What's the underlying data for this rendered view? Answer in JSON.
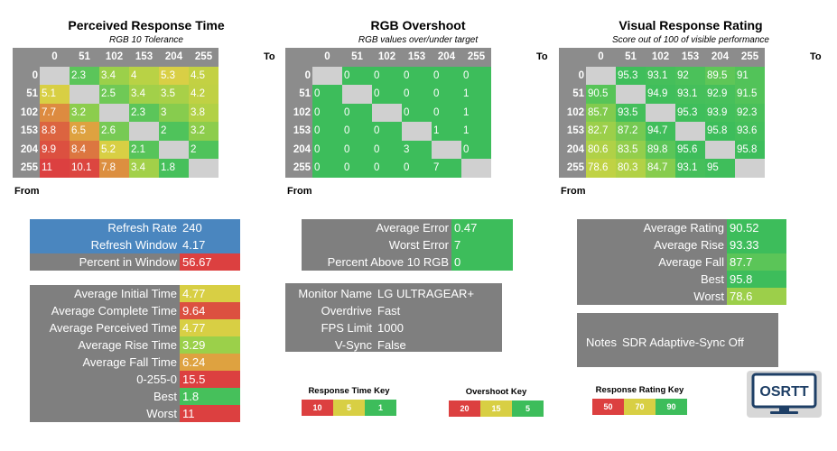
{
  "grids": [
    {
      "title": "Perceived Response Time",
      "subtitle": "RGB 10 Tolerance",
      "col_headers": [
        "0",
        "51",
        "102",
        "153",
        "204",
        "255"
      ],
      "row_headers": [
        "0",
        "51",
        "102",
        "153",
        "204",
        "255"
      ],
      "to_label": "To",
      "from_label": "From",
      "cells": [
        [
          "",
          "2.3",
          "3.4",
          "4",
          "5.3",
          "4.5"
        ],
        [
          "5.1",
          "",
          "2.5",
          "3.4",
          "3.5",
          "4.2"
        ],
        [
          "7.7",
          "3.2",
          "",
          "2.3",
          "3",
          "3.8"
        ],
        [
          "8.8",
          "6.5",
          "2.6",
          "",
          "2",
          "3.2"
        ],
        [
          "9.9",
          "8.4",
          "5.2",
          "2.1",
          "",
          "2"
        ],
        [
          "11",
          "10.1",
          "7.8",
          "3.4",
          "1.8",
          ""
        ]
      ],
      "colors": [
        [
          "#d0d0d0",
          "#5bc55a",
          "#9bd04a",
          "#b9d245",
          "#d9cf45",
          "#c3d143"
        ],
        [
          "#d8cf44",
          "#d0d0d0",
          "#6fc956",
          "#a2d049",
          "#a8d048",
          "#c0d144"
        ],
        [
          "#dd8b40",
          "#8ccd4d",
          "#d0d0d0",
          "#5bc55a",
          "#87cc4e",
          "#b2d146"
        ],
        [
          "#dc6440",
          "#dea240",
          "#77ca54",
          "#d0d0d0",
          "#4fc35b",
          "#8dcd4c"
        ],
        [
          "#dc5040",
          "#dc7640",
          "#d8cf44",
          "#57c45a",
          "#d0d0d0",
          "#4fc35b"
        ],
        [
          "#dc4040",
          "#dc4640",
          "#dc8f40",
          "#a2d049",
          "#46c05b",
          "#d0d0d0"
        ]
      ]
    },
    {
      "title": "RGB Overshoot",
      "subtitle": "RGB values over/under target",
      "col_headers": [
        "0",
        "51",
        "102",
        "153",
        "204",
        "255"
      ],
      "row_headers": [
        "0",
        "51",
        "102",
        "153",
        "204",
        "255"
      ],
      "to_label": "To",
      "from_label": "From",
      "cells": [
        [
          "",
          "0",
          "0",
          "0",
          "0",
          "0"
        ],
        [
          "0",
          "",
          "0",
          "0",
          "0",
          "1"
        ],
        [
          "0",
          "0",
          "",
          "0",
          "0",
          "1"
        ],
        [
          "0",
          "0",
          "0",
          "",
          "1",
          "1"
        ],
        [
          "0",
          "0",
          "0",
          "3",
          "",
          "0"
        ],
        [
          "0",
          "0",
          "0",
          "0",
          "7",
          ""
        ]
      ],
      "colors": [
        [
          "#d0d0d0",
          "#3dbd5b",
          "#3dbd5b",
          "#3dbd5b",
          "#3dbd5b",
          "#3dbd5b"
        ],
        [
          "#3dbd5b",
          "#d0d0d0",
          "#3dbd5b",
          "#3dbd5b",
          "#3dbd5b",
          "#3dbd5b"
        ],
        [
          "#3dbd5b",
          "#3dbd5b",
          "#d0d0d0",
          "#3dbd5b",
          "#3dbd5b",
          "#3dbd5b"
        ],
        [
          "#3dbd5b",
          "#3dbd5b",
          "#3dbd5b",
          "#d0d0d0",
          "#3dbd5b",
          "#3dbd5b"
        ],
        [
          "#3dbd5b",
          "#3dbd5b",
          "#3dbd5b",
          "#3dbd5b",
          "#d0d0d0",
          "#3dbd5b"
        ],
        [
          "#3dbd5b",
          "#3dbd5b",
          "#3dbd5b",
          "#3dbd5b",
          "#3dbd5b",
          "#d0d0d0"
        ]
      ]
    },
    {
      "title": "Visual Response Rating",
      "subtitle": "Score out of 100 of visible performance",
      "col_headers": [
        "0",
        "51",
        "102",
        "153",
        "204",
        "255"
      ],
      "row_headers": [
        "0",
        "51",
        "102",
        "153",
        "204",
        "255"
      ],
      "to_label": "To",
      "from_label": "From",
      "cells": [
        [
          "",
          "95.3",
          "93.1",
          "92",
          "89.5",
          "91"
        ],
        [
          "90.5",
          "",
          "94.9",
          "93.1",
          "92.9",
          "91.5"
        ],
        [
          "85.7",
          "93.5",
          "",
          "95.3",
          "93.9",
          "92.3"
        ],
        [
          "82.7",
          "87.2",
          "94.7",
          "",
          "95.8",
          "93.6"
        ],
        [
          "80.6",
          "83.5",
          "89.8",
          "95.6",
          "",
          "95.8"
        ],
        [
          "78.6",
          "80.3",
          "84.7",
          "93.1",
          "95",
          ""
        ]
      ],
      "colors": [
        [
          "#d0d0d0",
          "#3fbe5b",
          "#45bf5b",
          "#4bc15a",
          "#5fc657",
          "#52c359"
        ],
        [
          "#57c458",
          "#d0d0d0",
          "#40be5b",
          "#45bf5b",
          "#47c05b",
          "#52c359"
        ],
        [
          "#82cb4e",
          "#44bf5b",
          "#d0d0d0",
          "#3fbe5b",
          "#43bf5b",
          "#49c05a"
        ],
        [
          "#9ccf4a",
          "#75c952",
          "#41be5b",
          "#d0d0d0",
          "#3dbd5b",
          "#44bf5b"
        ],
        [
          "#b0d147",
          "#93ce4c",
          "#5bc558",
          "#3ebd5b",
          "#d0d0d0",
          "#3dbd5b"
        ],
        [
          "#c0d244",
          "#b2d146",
          "#87cc4e",
          "#45bf5b",
          "#3fbe5b",
          "#d0d0d0"
        ]
      ]
    }
  ],
  "stats_timing": {
    "rows": [
      {
        "label": "Refresh Rate",
        "value": "240",
        "bg": "#4a86bf",
        "vbg": "#4a86bf"
      },
      {
        "label": "Refresh Window",
        "value": "4.17",
        "bg": "#4a86bf",
        "vbg": "#4a86bf"
      },
      {
        "label": "Percent in Window",
        "value": "56.67",
        "bg": "#7f7f7f",
        "vbg": "#dc4040"
      }
    ]
  },
  "stats_averages": {
    "rows": [
      {
        "label": "Average Initial Time",
        "value": "4.77",
        "vbg": "#d8cf44"
      },
      {
        "label": "Average Complete Time",
        "value": "9.64",
        "vbg": "#dc5040"
      },
      {
        "label": "Average Perceived Time",
        "value": "4.77",
        "vbg": "#d8cf44"
      },
      {
        "label": "Average Rise Time",
        "value": "3.29",
        "vbg": "#9bd04a"
      },
      {
        "label": "Average Fall Time",
        "value": "6.24",
        "vbg": "#dea240"
      },
      {
        "label": "0-255-0",
        "value": "15.5",
        "vbg": "#dc4040"
      },
      {
        "label": "Best",
        "value": "1.8",
        "vbg": "#46c05b"
      },
      {
        "label": "Worst",
        "value": "11",
        "vbg": "#dc4040"
      }
    ]
  },
  "stats_overshoot": {
    "rows": [
      {
        "label": "Average Error",
        "value": "0.47",
        "vbg": "#3dbd5b"
      },
      {
        "label": "Worst Error",
        "value": "7",
        "vbg": "#3dbd5b"
      },
      {
        "label": "Percent Above 10 RGB",
        "value": "0",
        "vbg": "#3dbd5b"
      }
    ]
  },
  "monitor_info": {
    "rows": [
      {
        "label": "Monitor Name",
        "value": "LG ULTRAGEAR+"
      },
      {
        "label": "Overdrive",
        "value": "Fast"
      },
      {
        "label": "FPS Limit",
        "value": "1000"
      },
      {
        "label": "V-Sync",
        "value": "False"
      }
    ]
  },
  "stats_rating": {
    "rows": [
      {
        "label": "Average Rating",
        "value": "90.52",
        "vbg": "#3dbd5b"
      },
      {
        "label": "Average Rise",
        "value": "93.33",
        "vbg": "#3dbd5b"
      },
      {
        "label": "Average Fall",
        "value": "87.7",
        "vbg": "#5bc558"
      },
      {
        "label": "Best",
        "value": "95.8",
        "vbg": "#3dbd5b"
      },
      {
        "label": "Worst",
        "value": "78.6",
        "vbg": "#9ccf4a"
      }
    ]
  },
  "notes": {
    "label": "Notes",
    "value": "SDR Adaptive-Sync Off"
  },
  "keys": [
    {
      "title": "Response Time Key",
      "items": [
        {
          "text": "10",
          "color": "#dc4040"
        },
        {
          "text": "5",
          "color": "#d8cf44"
        },
        {
          "text": "1",
          "color": "#3dbd5b"
        }
      ]
    },
    {
      "title": "Overshoot Key",
      "items": [
        {
          "text": "20",
          "color": "#dc4040"
        },
        {
          "text": "15",
          "color": "#d8cf44"
        },
        {
          "text": "5",
          "color": "#3dbd5b"
        }
      ]
    },
    {
      "title": "Response Rating Key",
      "items": [
        {
          "text": "50",
          "color": "#dc4040"
        },
        {
          "text": "70",
          "color": "#d8cf44"
        },
        {
          "text": "90",
          "color": "#3dbd5b"
        }
      ]
    }
  ],
  "logo": {
    "text": "OSRTT",
    "icon": "monitor-logo-icon"
  }
}
